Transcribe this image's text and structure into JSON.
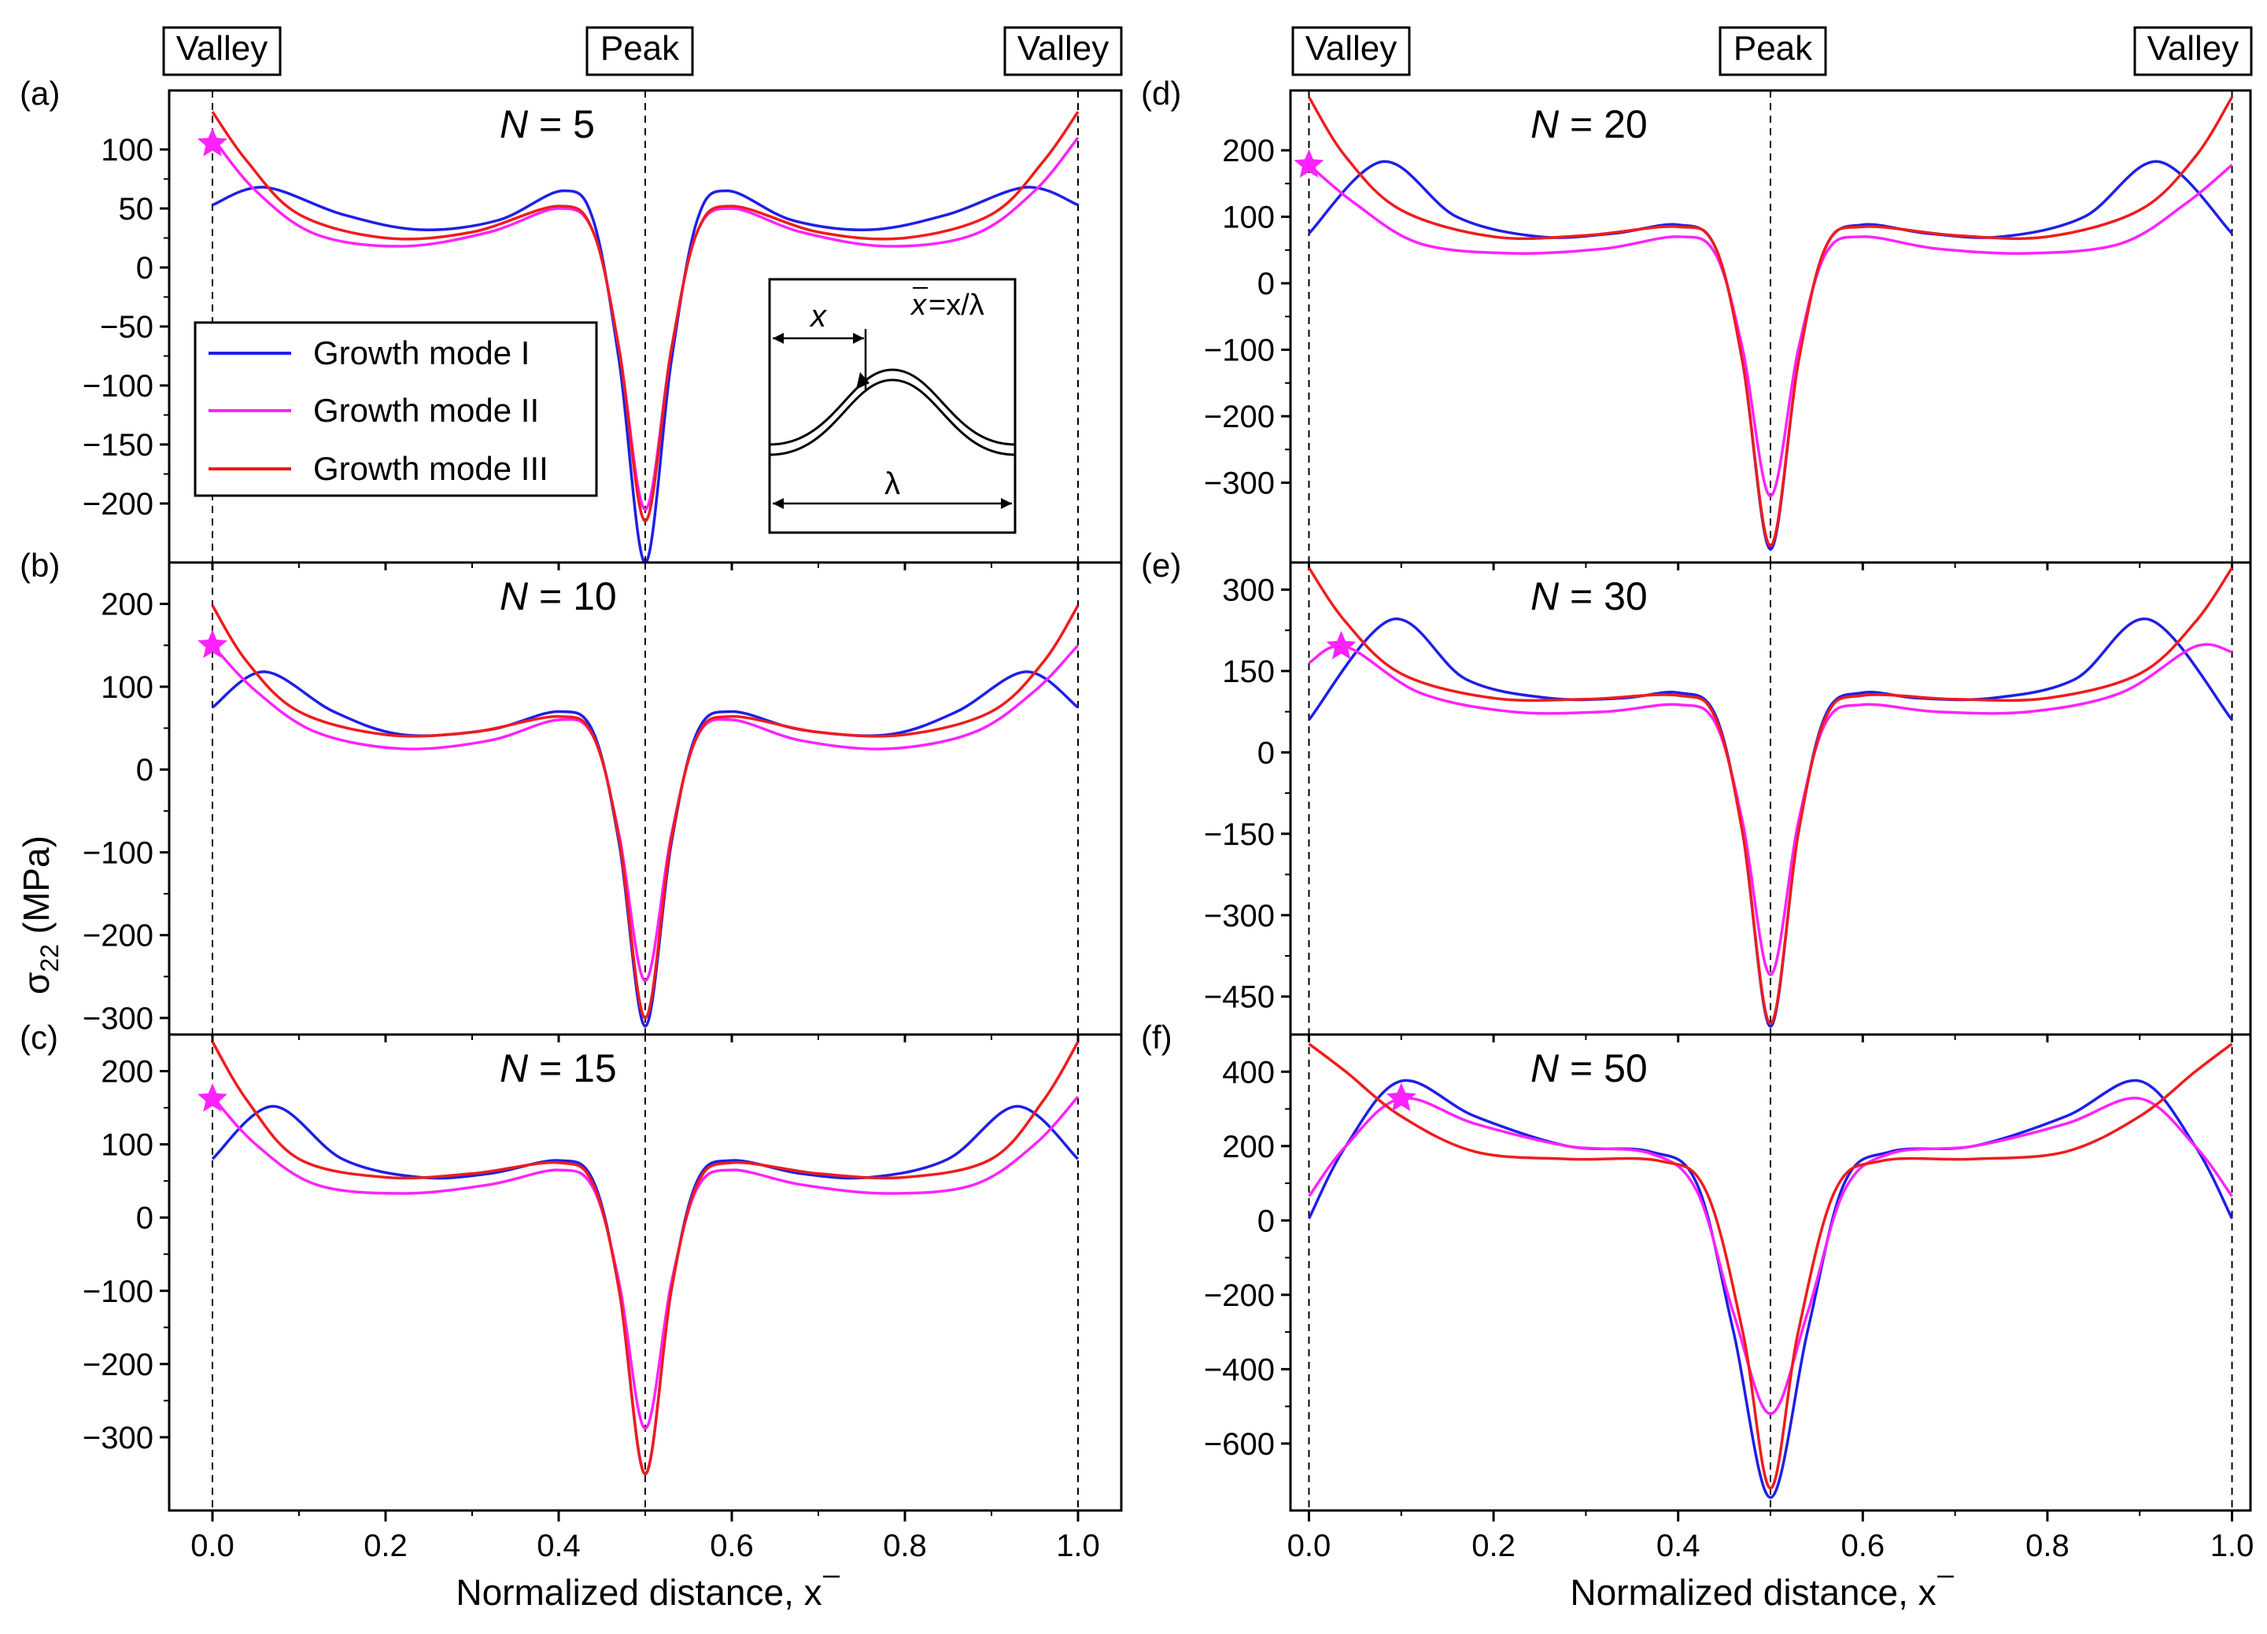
{
  "figure": {
    "ylabel_symbol": "σ",
    "ylabel_sub": "22",
    "ylabel_unit": " (MPa)",
    "xlabel": "Normalized distance, ",
    "xlabel_symbol": "x"
  },
  "header_labels": [
    "Valley",
    "Peak",
    "Valley"
  ],
  "legend": [
    "Growth mode I",
    "Growth mode II",
    "Growth mode III"
  ],
  "colors": {
    "mode1": "#1f1fe6",
    "mode2": "#ff22ff",
    "mode3": "#f01c1c",
    "star": "#ff22ff",
    "axis": "#000000"
  },
  "inset": {
    "x_label": "x",
    "xbar_label": "x",
    "formula": "=x/λ",
    "lambda_label": "λ"
  },
  "chart_data": [
    {
      "type": "line",
      "panel": "(a)",
      "title_italic": "N",
      "title_rest": " = 5",
      "xlim": [
        -0.05,
        1.05
      ],
      "ylim": [
        -250,
        150
      ],
      "yticks": [
        100,
        50,
        0,
        -50,
        -100,
        -150,
        -200
      ],
      "ytick_labels": [
        "100",
        "50",
        "0",
        "−50",
        "−100",
        "−150",
        "−200"
      ],
      "xticks": [
        0.0,
        0.2,
        0.4,
        0.6,
        0.8,
        1.0
      ],
      "xtick_labels": [
        "0.0",
        "0.2",
        "0.4",
        "0.6",
        "0.8",
        "1.0"
      ],
      "star": {
        "x": 0.0,
        "y": 105
      },
      "series": [
        {
          "name": "Growth mode I",
          "x": [
            0.0,
            0.06,
            0.15,
            0.24,
            0.33,
            0.405,
            0.44,
            0.47,
            0.5,
            0.53,
            0.56,
            0.595,
            0.67,
            0.76,
            0.85,
            0.94,
            1.0
          ],
          "y": [
            53,
            68,
            45,
            32,
            40,
            65,
            40,
            -80,
            -250,
            -80,
            40,
            65,
            40,
            32,
            45,
            68,
            53
          ]
        },
        {
          "name": "Growth mode II",
          "x": [
            0.0,
            0.05,
            0.12,
            0.22,
            0.32,
            0.4,
            0.44,
            0.47,
            0.5,
            0.53,
            0.56,
            0.6,
            0.68,
            0.78,
            0.88,
            0.95,
            1.0
          ],
          "y": [
            110,
            65,
            28,
            18,
            30,
            50,
            30,
            -70,
            -205,
            -70,
            30,
            50,
            30,
            18,
            28,
            65,
            110
          ]
        },
        {
          "name": "Growth mode III",
          "x": [
            0.0,
            0.04,
            0.1,
            0.2,
            0.3,
            0.4,
            0.44,
            0.47,
            0.5,
            0.53,
            0.56,
            0.6,
            0.7,
            0.8,
            0.9,
            0.96,
            1.0
          ],
          "y": [
            132,
            90,
            45,
            25,
            30,
            52,
            30,
            -70,
            -215,
            -70,
            30,
            52,
            30,
            25,
            45,
            90,
            132
          ]
        }
      ]
    },
    {
      "type": "line",
      "panel": "(b)",
      "title_italic": "N",
      "title_rest": " = 10",
      "xlim": [
        -0.05,
        1.05
      ],
      "ylim": [
        -320,
        250
      ],
      "yticks": [
        200,
        100,
        0,
        -100,
        -200,
        -300
      ],
      "ytick_labels": [
        "200",
        "100",
        "0",
        "−100",
        "−200",
        "−300"
      ],
      "xticks": [
        0.0,
        0.2,
        0.4,
        0.6,
        0.8,
        1.0
      ],
      "xtick_labels": [
        "0.0",
        "0.2",
        "0.4",
        "0.6",
        "0.8",
        "1.0"
      ],
      "star": {
        "x": 0.0,
        "y": 150
      },
      "series": [
        {
          "name": "Growth mode I",
          "x": [
            0.0,
            0.06,
            0.14,
            0.22,
            0.32,
            0.4,
            0.44,
            0.47,
            0.5,
            0.53,
            0.56,
            0.6,
            0.68,
            0.78,
            0.86,
            0.94,
            1.0
          ],
          "y": [
            75,
            118,
            70,
            42,
            48,
            70,
            45,
            -90,
            -310,
            -90,
            45,
            70,
            48,
            42,
            70,
            118,
            75
          ]
        },
        {
          "name": "Growth mode II",
          "x": [
            0.0,
            0.05,
            0.12,
            0.22,
            0.32,
            0.4,
            0.44,
            0.47,
            0.5,
            0.53,
            0.56,
            0.6,
            0.68,
            0.78,
            0.88,
            0.95,
            1.0
          ],
          "y": [
            150,
            95,
            45,
            25,
            35,
            60,
            40,
            -80,
            -255,
            -80,
            40,
            60,
            35,
            25,
            45,
            95,
            150
          ]
        },
        {
          "name": "Growth mode III",
          "x": [
            0.0,
            0.04,
            0.1,
            0.2,
            0.3,
            0.4,
            0.44,
            0.47,
            0.5,
            0.53,
            0.56,
            0.6,
            0.7,
            0.8,
            0.9,
            0.96,
            1.0
          ],
          "y": [
            198,
            130,
            70,
            42,
            45,
            64,
            40,
            -85,
            -300,
            -85,
            40,
            64,
            45,
            42,
            70,
            130,
            198
          ]
        }
      ]
    },
    {
      "type": "line",
      "panel": "(c)",
      "title_italic": "N",
      "title_rest": " = 15",
      "xlim": [
        -0.05,
        1.05
      ],
      "ylim": [
        -400,
        250
      ],
      "yticks": [
        200,
        100,
        0,
        -100,
        -200,
        -300
      ],
      "ytick_labels": [
        "200",
        "100",
        "0",
        "−100",
        "−200",
        "−300"
      ],
      "xticks": [
        0.0,
        0.2,
        0.4,
        0.6,
        0.8,
        1.0
      ],
      "xtick_labels": [
        "0.0",
        "0.2",
        "0.4",
        "0.6",
        "0.8",
        "1.0"
      ],
      "star": {
        "x": 0.0,
        "y": 162
      },
      "series": [
        {
          "name": "Growth mode I",
          "x": [
            0.0,
            0.07,
            0.15,
            0.24,
            0.32,
            0.4,
            0.44,
            0.47,
            0.5,
            0.53,
            0.56,
            0.6,
            0.68,
            0.76,
            0.85,
            0.93,
            1.0
          ],
          "y": [
            80,
            152,
            80,
            55,
            60,
            78,
            50,
            -100,
            -350,
            -100,
            50,
            78,
            60,
            55,
            80,
            152,
            80
          ]
        },
        {
          "name": "Growth mode II",
          "x": [
            0.0,
            0.05,
            0.12,
            0.22,
            0.32,
            0.4,
            0.44,
            0.47,
            0.5,
            0.53,
            0.56,
            0.6,
            0.68,
            0.78,
            0.88,
            0.95,
            1.0
          ],
          "y": [
            165,
            100,
            45,
            33,
            45,
            65,
            40,
            -90,
            -288,
            -90,
            40,
            65,
            45,
            33,
            45,
            100,
            165
          ]
        },
        {
          "name": "Growth mode III",
          "x": [
            0.0,
            0.04,
            0.1,
            0.2,
            0.3,
            0.4,
            0.44,
            0.47,
            0.5,
            0.53,
            0.56,
            0.6,
            0.7,
            0.8,
            0.9,
            0.96,
            1.0
          ],
          "y": [
            240,
            160,
            80,
            55,
            60,
            75,
            45,
            -100,
            -350,
            -100,
            45,
            75,
            60,
            55,
            80,
            160,
            240
          ]
        }
      ]
    },
    {
      "type": "line",
      "panel": "(d)",
      "title_italic": "N",
      "title_rest": " = 20",
      "xlim": [
        -0.02,
        1.02
      ],
      "ylim": [
        -420,
        290
      ],
      "yticks": [
        200,
        100,
        0,
        -100,
        -200,
        -300
      ],
      "ytick_labels": [
        "200",
        "100",
        "0",
        "−100",
        "−200",
        "−300"
      ],
      "xticks": [
        0.0,
        0.2,
        0.4,
        0.6,
        0.8,
        1.0
      ],
      "xtick_labels": [
        "0.0",
        "0.2",
        "0.4",
        "0.6",
        "0.8",
        "1.0"
      ],
      "star": {
        "x": 0.0,
        "y": 178
      },
      "series": [
        {
          "name": "Growth mode I",
          "x": [
            0.0,
            0.08,
            0.16,
            0.25,
            0.33,
            0.4,
            0.44,
            0.47,
            0.5,
            0.53,
            0.56,
            0.6,
            0.67,
            0.75,
            0.84,
            0.92,
            1.0
          ],
          "y": [
            75,
            183,
            100,
            70,
            75,
            88,
            55,
            -120,
            -400,
            -120,
            55,
            88,
            75,
            70,
            100,
            183,
            75
          ]
        },
        {
          "name": "Growth mode II",
          "x": [
            0.0,
            0.05,
            0.12,
            0.22,
            0.32,
            0.4,
            0.44,
            0.47,
            0.5,
            0.53,
            0.56,
            0.6,
            0.68,
            0.78,
            0.88,
            0.95,
            1.0
          ],
          "y": [
            178,
            120,
            60,
            45,
            52,
            70,
            45,
            -100,
            -320,
            -100,
            45,
            70,
            52,
            45,
            60,
            120,
            178
          ]
        },
        {
          "name": "Growth mode III",
          "x": [
            0.0,
            0.04,
            0.1,
            0.2,
            0.3,
            0.4,
            0.44,
            0.47,
            0.5,
            0.53,
            0.56,
            0.6,
            0.7,
            0.8,
            0.9,
            0.96,
            1.0
          ],
          "y": [
            280,
            190,
            110,
            70,
            72,
            85,
            55,
            -120,
            -395,
            -120,
            55,
            85,
            72,
            70,
            110,
            190,
            280
          ]
        }
      ]
    },
    {
      "type": "line",
      "panel": "(e)",
      "title_italic": "N",
      "title_rest": " = 30",
      "xlim": [
        -0.02,
        1.02
      ],
      "ylim": [
        -520,
        350
      ],
      "yticks": [
        300,
        150,
        0,
        -150,
        -300,
        -450
      ],
      "ytick_labels": [
        "300",
        "150",
        "0",
        "−150",
        "−300",
        "−450"
      ],
      "xticks": [
        0.0,
        0.2,
        0.4,
        0.6,
        0.8,
        1.0
      ],
      "xtick_labels": [
        "0.0",
        "0.2",
        "0.4",
        "0.6",
        "0.8",
        "1.0"
      ],
      "star": {
        "x": 0.035,
        "y": 195
      },
      "series": [
        {
          "name": "Growth mode I",
          "x": [
            0.0,
            0.09,
            0.17,
            0.26,
            0.34,
            0.4,
            0.44,
            0.47,
            0.5,
            0.53,
            0.56,
            0.6,
            0.66,
            0.74,
            0.83,
            0.91,
            1.0
          ],
          "y": [
            60,
            245,
            135,
            100,
            100,
            110,
            70,
            -150,
            -505,
            -150,
            70,
            110,
            100,
            100,
            135,
            245,
            60
          ]
        },
        {
          "name": "Growth mode II",
          "x": [
            0.0,
            0.04,
            0.12,
            0.22,
            0.32,
            0.4,
            0.44,
            0.47,
            0.5,
            0.53,
            0.56,
            0.6,
            0.68,
            0.78,
            0.88,
            0.96,
            1.0
          ],
          "y": [
            165,
            195,
            110,
            75,
            75,
            88,
            55,
            -130,
            -410,
            -130,
            55,
            88,
            75,
            75,
            110,
            195,
            185
          ]
        },
        {
          "name": "Growth mode III",
          "x": [
            0.0,
            0.04,
            0.1,
            0.2,
            0.3,
            0.4,
            0.44,
            0.47,
            0.5,
            0.53,
            0.56,
            0.6,
            0.7,
            0.8,
            0.9,
            0.96,
            1.0
          ],
          "y": [
            340,
            240,
            145,
            100,
            98,
            105,
            65,
            -150,
            -500,
            -150,
            65,
            105,
            98,
            100,
            145,
            240,
            340
          ]
        }
      ]
    },
    {
      "type": "line",
      "panel": "(f)",
      "title_italic": "N",
      "title_rest": " = 50",
      "xlim": [
        -0.02,
        1.02
      ],
      "ylim": [
        -780,
        500
      ],
      "yticks": [
        400,
        200,
        0,
        -200,
        -400,
        -600
      ],
      "ytick_labels": [
        "400",
        "200",
        "0",
        "−200",
        "−400",
        "−600"
      ],
      "xticks": [
        0.0,
        0.2,
        0.4,
        0.6,
        0.8,
        1.0
      ],
      "xtick_labels": [
        "0.0",
        "0.2",
        "0.4",
        "0.6",
        "0.8",
        "1.0"
      ],
      "star": {
        "x": 0.1,
        "y": 328
      },
      "series": [
        {
          "name": "Growth mode I",
          "x": [
            0.0,
            0.04,
            0.1,
            0.18,
            0.28,
            0.37,
            0.42,
            0.46,
            0.5,
            0.54,
            0.58,
            0.63,
            0.72,
            0.82,
            0.9,
            0.96,
            1.0
          ],
          "y": [
            5,
            200,
            375,
            280,
            200,
            185,
            100,
            -300,
            -745,
            -300,
            100,
            185,
            200,
            280,
            375,
            200,
            5
          ]
        },
        {
          "name": "Growth mode II",
          "x": [
            0.0,
            0.04,
            0.1,
            0.18,
            0.28,
            0.37,
            0.42,
            0.46,
            0.5,
            0.54,
            0.58,
            0.63,
            0.72,
            0.82,
            0.9,
            0.96,
            1.0
          ],
          "y": [
            65,
            200,
            328,
            260,
            200,
            180,
            80,
            -250,
            -520,
            -250,
            80,
            180,
            200,
            260,
            328,
            200,
            65
          ]
        },
        {
          "name": "Growth mode III",
          "x": [
            0.0,
            0.04,
            0.1,
            0.18,
            0.28,
            0.38,
            0.43,
            0.47,
            0.5,
            0.53,
            0.57,
            0.62,
            0.72,
            0.82,
            0.9,
            0.96,
            1.0
          ],
          "y": [
            475,
            400,
            280,
            185,
            165,
            160,
            80,
            -300,
            -720,
            -300,
            80,
            160,
            165,
            185,
            280,
            400,
            475
          ]
        }
      ]
    }
  ]
}
